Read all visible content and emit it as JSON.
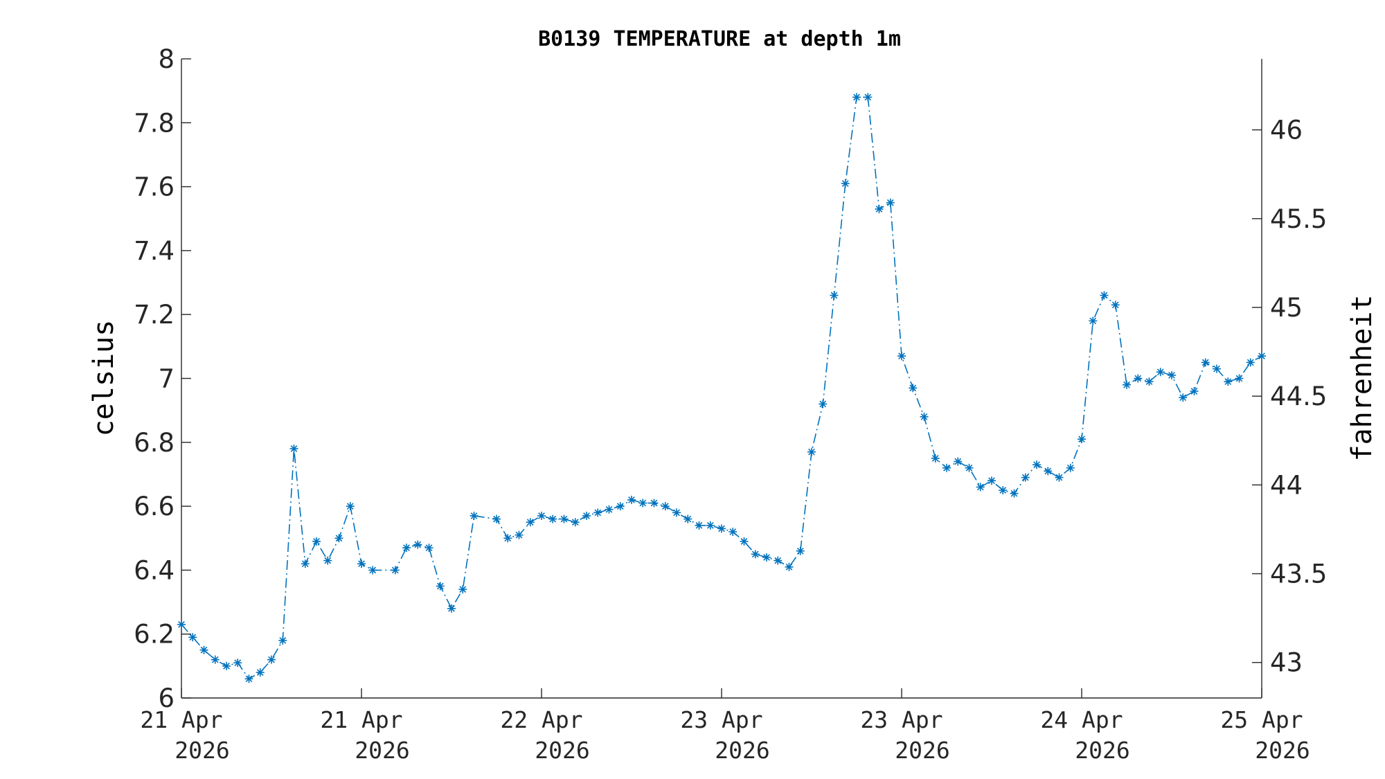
{
  "chart_data": {
    "type": "line",
    "title": "B0139 TEMPERATURE at depth 1m",
    "ylabel": "celsius",
    "y2label": "fahrenheit",
    "xlabel": "",
    "ylim": [
      6,
      8
    ],
    "y2lim": [
      42.8,
      46.4
    ],
    "yticks": [
      "6",
      "6.2",
      "6.4",
      "6.6",
      "6.8",
      "7",
      "7.2",
      "7.4",
      "7.6",
      "7.8",
      "8"
    ],
    "y2ticks": [
      "43",
      "43.5",
      "44",
      "44.5",
      "45",
      "45.5",
      "46"
    ],
    "xlim": [
      "2026-04-21T00:00",
      "2026-04-25T00:00"
    ],
    "xticks": [
      {
        "t": "2026-04-21T00:00",
        "line1": "21 Apr",
        "line2": "2026"
      },
      {
        "t": "2026-04-21T16:00",
        "line1": "21 Apr",
        "line2": "2026"
      },
      {
        "t": "2026-04-22T08:00",
        "line1": "22 Apr",
        "line2": "2026"
      },
      {
        "t": "2026-04-23T00:00",
        "line1": "23 Apr",
        "line2": "2026"
      },
      {
        "t": "2026-04-23T16:00",
        "line1": "23 Apr",
        "line2": "2026"
      },
      {
        "t": "2026-04-24T08:00",
        "line1": "24 Apr",
        "line2": "2026"
      },
      {
        "t": "2026-04-25T00:00",
        "line1": "25 Apr",
        "line2": "2026"
      }
    ],
    "legend": "none",
    "grid": false,
    "color": "#0072bd",
    "marker": "asterisk",
    "line_style": "dash-dot",
    "series": [
      {
        "x": [
          "2026-04-21T00:00",
          "2026-04-21T01:00",
          "2026-04-21T02:00",
          "2026-04-21T03:00",
          "2026-04-21T04:00",
          "2026-04-21T05:00",
          "2026-04-21T06:00",
          "2026-04-21T07:00",
          "2026-04-21T08:00",
          "2026-04-21T09:00",
          "2026-04-21T10:00",
          "2026-04-21T11:00",
          "2026-04-21T12:00",
          "2026-04-21T13:00",
          "2026-04-21T14:00",
          "2026-04-21T15:00",
          "2026-04-21T16:00",
          "2026-04-21T17:00",
          "2026-04-21T19:00",
          "2026-04-21T20:00",
          "2026-04-21T21:00",
          "2026-04-21T22:00",
          "2026-04-21T23:00",
          "2026-04-22T00:00",
          "2026-04-22T01:00",
          "2026-04-22T02:00",
          "2026-04-22T04:00",
          "2026-04-22T05:00",
          "2026-04-22T06:00",
          "2026-04-22T07:00",
          "2026-04-22T08:00",
          "2026-04-22T09:00",
          "2026-04-22T10:00",
          "2026-04-22T11:00",
          "2026-04-22T12:00",
          "2026-04-22T13:00",
          "2026-04-22T14:00",
          "2026-04-22T15:00",
          "2026-04-22T16:00",
          "2026-04-22T17:00",
          "2026-04-22T18:00",
          "2026-04-22T19:00",
          "2026-04-22T20:00",
          "2026-04-22T21:00",
          "2026-04-22T22:00",
          "2026-04-22T23:00",
          "2026-04-23T00:00",
          "2026-04-23T01:00",
          "2026-04-23T02:00",
          "2026-04-23T03:00",
          "2026-04-23T04:00",
          "2026-04-23T05:00",
          "2026-04-23T06:00",
          "2026-04-23T07:00",
          "2026-04-23T08:00",
          "2026-04-23T09:00",
          "2026-04-23T10:00",
          "2026-04-23T11:00",
          "2026-04-23T12:00",
          "2026-04-23T13:00",
          "2026-04-23T14:00",
          "2026-04-23T15:00",
          "2026-04-23T16:00",
          "2026-04-23T17:00",
          "2026-04-23T18:00",
          "2026-04-23T19:00",
          "2026-04-23T20:00",
          "2026-04-23T21:00",
          "2026-04-23T22:00",
          "2026-04-23T23:00",
          "2026-04-24T00:00",
          "2026-04-24T01:00",
          "2026-04-24T02:00",
          "2026-04-24T03:00",
          "2026-04-24T04:00",
          "2026-04-24T05:00",
          "2026-04-24T06:00",
          "2026-04-24T07:00",
          "2026-04-24T08:00",
          "2026-04-24T09:00",
          "2026-04-24T10:00",
          "2026-04-24T11:00",
          "2026-04-24T12:00",
          "2026-04-24T13:00",
          "2026-04-24T14:00",
          "2026-04-24T15:00",
          "2026-04-24T16:00",
          "2026-04-24T17:00",
          "2026-04-24T18:00",
          "2026-04-24T19:00",
          "2026-04-24T20:00",
          "2026-04-24T21:00",
          "2026-04-24T22:00",
          "2026-04-24T23:00",
          "2026-04-25T00:00"
        ],
        "y": [
          6.23,
          6.19,
          6.15,
          6.12,
          6.1,
          6.11,
          6.06,
          6.08,
          6.12,
          6.18,
          6.78,
          6.42,
          6.49,
          6.43,
          6.5,
          6.6,
          6.42,
          6.4,
          6.4,
          6.47,
          6.48,
          6.47,
          6.35,
          6.28,
          6.34,
          6.57,
          6.56,
          6.5,
          6.51,
          6.55,
          6.57,
          6.56,
          6.56,
          6.55,
          6.57,
          6.58,
          6.59,
          6.6,
          6.62,
          6.61,
          6.61,
          6.6,
          6.58,
          6.56,
          6.54,
          6.54,
          6.53,
          6.52,
          6.49,
          6.45,
          6.44,
          6.43,
          6.41,
          6.46,
          6.77,
          6.92,
          7.26,
          7.61,
          7.88,
          7.88,
          7.53,
          7.55,
          7.07,
          6.97,
          6.88,
          6.75,
          6.72,
          6.74,
          6.72,
          6.66,
          6.68,
          6.65,
          6.64,
          6.69,
          6.73,
          6.71,
          6.69,
          6.72,
          6.81,
          7.18,
          7.26,
          7.23,
          6.98,
          7.0,
          6.99,
          7.02,
          7.01,
          6.94,
          6.96,
          7.05,
          7.03,
          6.99,
          7.0,
          7.05,
          7.07
        ]
      }
    ]
  }
}
